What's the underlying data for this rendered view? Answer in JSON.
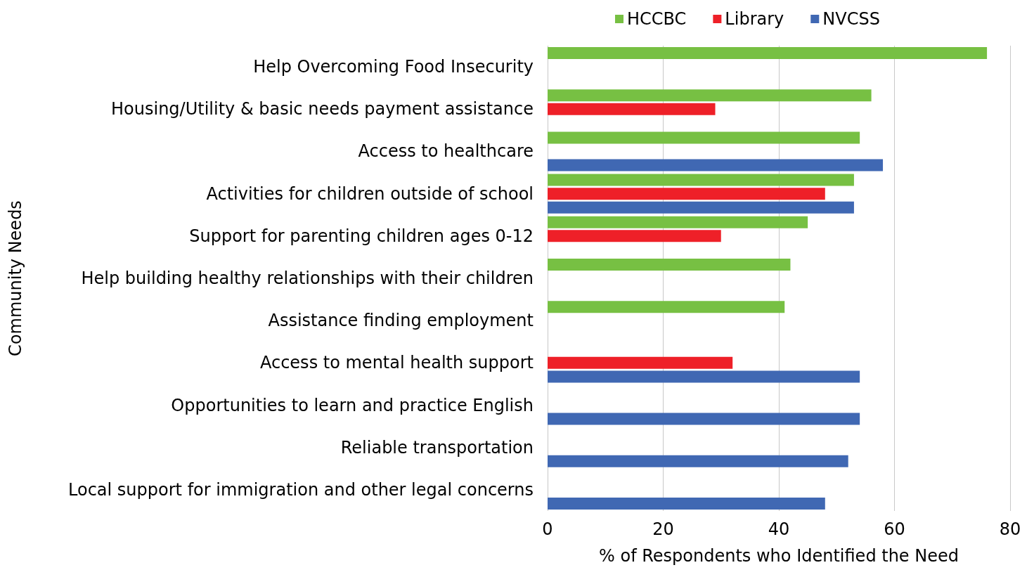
{
  "chart_data": {
    "type": "bar",
    "orientation": "horizontal",
    "categories": [
      "Help Overcoming Food Insecurity",
      "Housing/Utility & basic needs payment assistance",
      "Access to healthcare",
      "Activities for children outside of school",
      "Support for parenting children ages 0-12",
      "Help building healthy relationships with their children",
      "Assistance finding employment",
      "Access to mental health support",
      "Opportunities to learn and practice English",
      "Reliable transportation",
      "Local support for immigration and other legal concerns"
    ],
    "series": [
      {
        "name": "HCCBC",
        "color": "#77c043",
        "values": [
          76,
          56,
          54,
          53,
          45,
          42,
          41,
          null,
          null,
          null,
          null
        ]
      },
      {
        "name": "Library",
        "color": "#ee2028",
        "values": [
          null,
          29,
          null,
          48,
          30,
          null,
          null,
          32,
          null,
          null,
          null
        ]
      },
      {
        "name": "NVCSS",
        "color": "#4068b3",
        "values": [
          null,
          null,
          58,
          53,
          null,
          null,
          null,
          54,
          54,
          52,
          48
        ]
      }
    ],
    "xlim": [
      0,
      80
    ],
    "xticks": [
      0,
      20,
      40,
      60,
      80
    ],
    "xlabel": "% of Respondents who Identified the Need",
    "ylabel": "Community Needs",
    "grid": "x",
    "legend": "top"
  }
}
